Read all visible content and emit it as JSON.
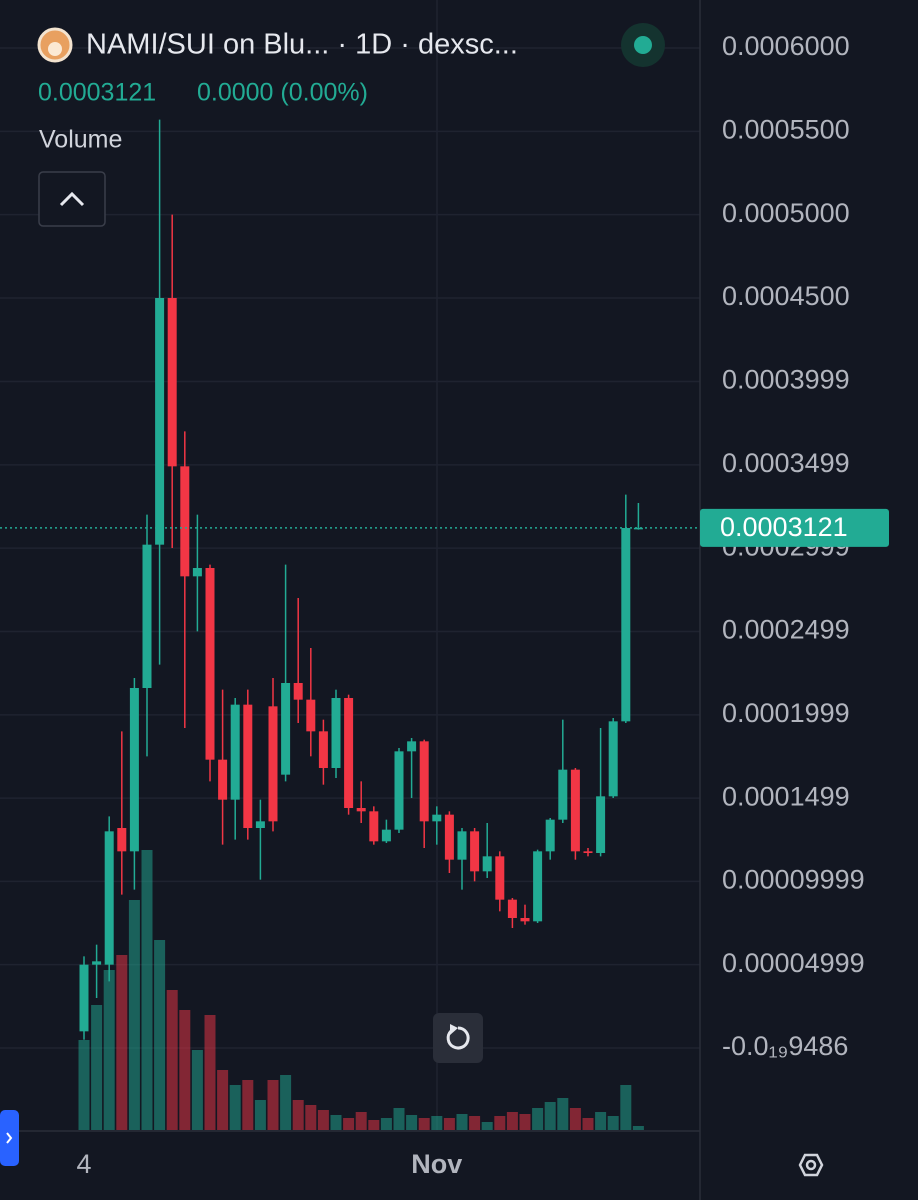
{
  "chart_data": {
    "type": "candlestick",
    "title": "NAMI/SUI on Blu... · 1D · dexsc...",
    "change_label": "0.0000 (0.00%)",
    "legend": "Volume",
    "last_price": 0.0003121,
    "up_color": "#22ab94",
    "down_color": "#f23645",
    "categories": [
      "4",
      null,
      null,
      null,
      null,
      null,
      null,
      null,
      null,
      null,
      null,
      null,
      null,
      null,
      null,
      null,
      null,
      null,
      null,
      null,
      null,
      null,
      null,
      null,
      null,
      null,
      null,
      null,
      "Nov",
      null,
      null,
      null,
      null,
      null,
      null,
      null,
      null,
      null,
      null,
      null,
      null,
      null,
      null,
      null,
      null
    ],
    "open": [
      1e-05,
      5e-05,
      5e-05,
      0.000132,
      0.000118,
      0.000216,
      0.000302,
      0.00045,
      0.000349,
      0.000283,
      0.000288,
      0.000173,
      0.000149,
      0.000206,
      0.000132,
      0.000205,
      0.000164,
      0.000219,
      0.000209,
      0.00019,
      0.000168,
      0.00021,
      0.000144,
      0.000142,
      0.000124,
      0.000131,
      0.000178,
      0.000184,
      0.000136,
      0.00014,
      0.000113,
      0.00013,
      0.000106,
      0.000115,
      8.9e-05,
      7.8e-05,
      7.6e-05,
      0.000118,
      0.000137,
      0.000167,
      0.000118,
      0.000117,
      0.000151,
      0.000196,
      0.0003121
    ],
    "high": [
      5.5e-05,
      6.2e-05,
      0.000139,
      0.00019,
      0.000222,
      0.00032,
      0.000557,
      0.0005,
      0.00037,
      0.00032,
      0.00029,
      0.000215,
      0.00021,
      0.000215,
      0.000149,
      0.000222,
      0.00029,
      0.00027,
      0.00024,
      0.000197,
      0.000215,
      0.000212,
      0.00016,
      0.000145,
      0.000137,
      0.00018,
      0.000186,
      0.000185,
      0.000145,
      0.000142,
      0.000132,
      0.000132,
      0.000135,
      0.000118,
      9e-05,
      8.6e-05,
      0.000119,
      0.000138,
      0.000197,
      0.000168,
      0.00012,
      0.000192,
      0.000198,
      0.000332,
      0.000327
    ],
    "low": [
      5e-06,
      3e-05,
      4e-05,
      9.2e-05,
      9.5e-05,
      0.000175,
      0.00023,
      0.0003,
      0.000192,
      0.00025,
      0.00016,
      0.000122,
      0.000125,
      0.000125,
      0.000101,
      0.00013,
      0.00016,
      0.000195,
      0.000175,
      0.000158,
      0.000162,
      0.00014,
      0.000135,
      0.000122,
      0.000123,
      0.000129,
      0.00015,
      0.00012,
      0.000122,
      0.000105,
      9.5e-05,
      0.0001,
      0.000102,
      8.2e-05,
      7.2e-05,
      7.4e-05,
      7.5e-05,
      0.000113,
      0.000135,
      0.000113,
      0.000115,
      0.000115,
      0.00015,
      0.000195,
      0.000311
    ],
    "close": [
      5e-05,
      5.2e-05,
      0.00013,
      0.000118,
      0.000216,
      0.000302,
      0.00045,
      0.000349,
      0.000283,
      0.000288,
      0.000173,
      0.000149,
      0.000206,
      0.000132,
      0.000136,
      0.000136,
      0.000219,
      0.000209,
      0.00019,
      0.000168,
      0.00021,
      0.000144,
      0.000142,
      0.000124,
      0.000131,
      0.000178,
      0.000184,
      0.000136,
      0.00014,
      0.000113,
      0.00013,
      0.000106,
      0.000115,
      8.9e-05,
      7.8e-05,
      7.6e-05,
      0.000118,
      0.000137,
      0.000167,
      0.000118,
      0.000117,
      0.000151,
      0.000196,
      0.000312,
      0.0003121
    ],
    "volume": [
      90,
      125,
      160,
      175,
      230,
      280,
      190,
      140,
      120,
      80,
      115,
      60,
      45,
      50,
      30,
      50,
      55,
      30,
      25,
      20,
      15,
      12,
      18,
      10,
      12,
      22,
      15,
      12,
      14,
      12,
      16,
      14,
      8,
      14,
      18,
      16,
      22,
      28,
      32,
      22,
      12,
      18,
      14,
      45,
      4
    ],
    "volume_ylim": [
      0,
      1130
    ],
    "ylim": [
      -4.92e-05,
      0.0006288
    ],
    "yticks": [
      {
        "value": 0.0006,
        "label": "0.0006000"
      },
      {
        "value": 0.00055,
        "label": "0.0005500"
      },
      {
        "value": 0.0005,
        "label": "0.0005000"
      },
      {
        "value": 0.00045,
        "label": "0.0004500"
      },
      {
        "value": 0.0003999,
        "label": "0.0003999"
      },
      {
        "value": 0.0003499,
        "label": "0.0003499"
      },
      {
        "value": 0.0002999,
        "label": "0.0002999"
      },
      {
        "value": 0.0002499,
        "label": "0.0002499"
      },
      {
        "value": 0.0001999,
        "label": "0.0001999"
      },
      {
        "value": 0.0001499,
        "label": "0.0001499"
      },
      {
        "value": 9.999e-05,
        "label": "0.00009999"
      },
      {
        "value": 4.999e-05,
        "label": "0.00004999"
      },
      {
        "value": -9.486e-20,
        "label": "-0.0₁₉9486"
      }
    ],
    "grid": true
  }
}
